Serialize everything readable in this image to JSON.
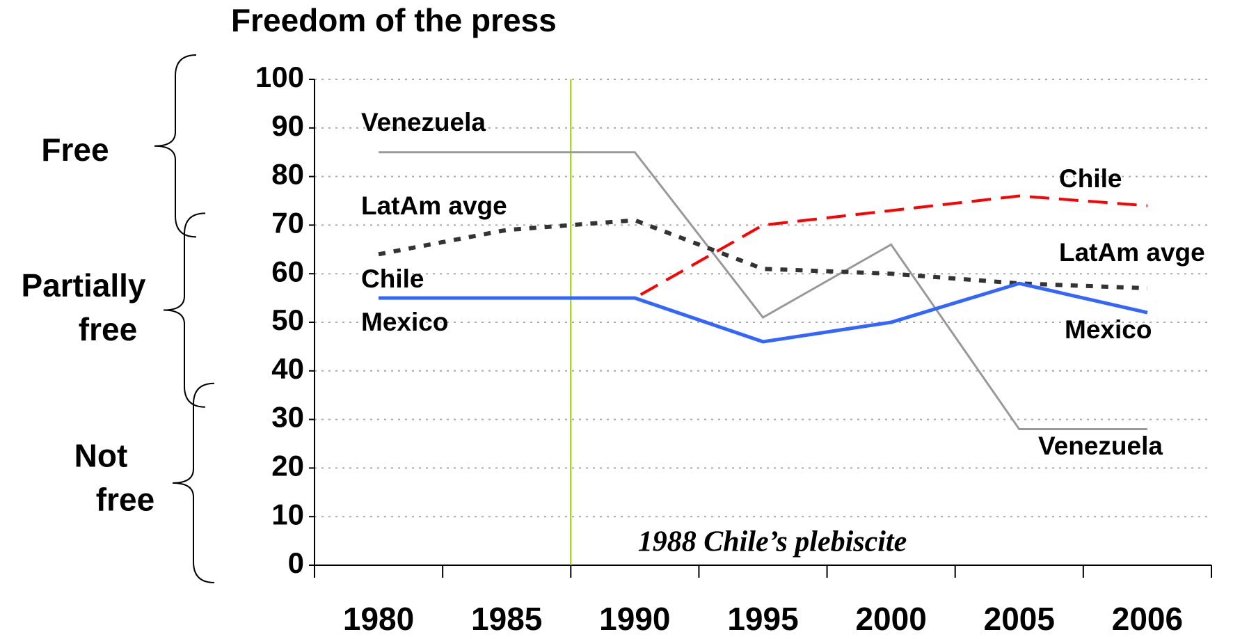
{
  "chart_data": {
    "type": "line",
    "title": "Freedom of the press",
    "categories": [
      "1980",
      "1985",
      "1990",
      "1995",
      "2000",
      "2005",
      "2006"
    ],
    "series": [
      {
        "name": "Venezuela",
        "color": "#999999",
        "values": [
          85,
          85,
          85,
          51,
          66,
          28,
          28
        ]
      },
      {
        "name": "LatAm avge",
        "color": "#333333",
        "values": [
          64,
          69,
          71,
          61,
          60,
          58,
          57
        ]
      },
      {
        "name": "Chile",
        "color": "#ff0000",
        "values": [
          55,
          55,
          55,
          70,
          73,
          76,
          74
        ]
      },
      {
        "name": "Mexico",
        "color": "#3366ff",
        "values": [
          55,
          55,
          55,
          46,
          50,
          58,
          52
        ]
      }
    ],
    "ylim": [
      0,
      100
    ],
    "yticks": [
      0,
      10,
      20,
      30,
      40,
      50,
      60,
      70,
      80,
      90,
      100
    ],
    "grid": true,
    "annotation": "1988 Chile’s plebiscite",
    "bands": [
      {
        "label": [
          "Free"
        ],
        "range": [
          70,
          100
        ]
      },
      {
        "label": [
          "Partially",
          "free"
        ],
        "range": [
          35,
          70
        ]
      },
      {
        "label": [
          "Not",
          "free"
        ],
        "range": [
          0,
          35
        ]
      }
    ]
  }
}
